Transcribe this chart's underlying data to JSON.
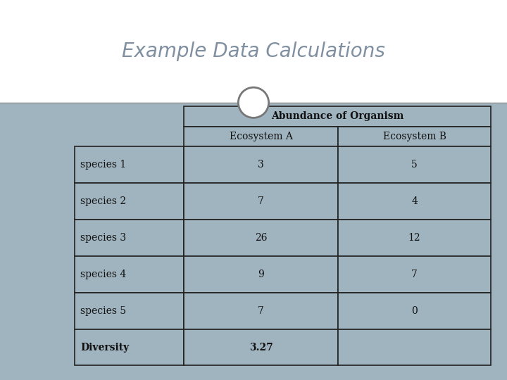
{
  "title": "Example Data Calculations",
  "title_fontsize": 20,
  "title_color": "#8090A0",
  "title_font": "Georgia",
  "bg_top": "#FFFFFF",
  "bg_bottom": "#A0B4C0",
  "divider_color": "#999999",
  "circle_facecolor": "#FFFFFF",
  "circle_edge_color": "#777777",
  "table_header1": "Abundance of Organism",
  "table_header2a": "Ecosystem A",
  "table_header2b": "Ecosystem B",
  "row_labels": [
    "species 1",
    "species 2",
    "species 3",
    "species 4",
    "species 5",
    "Diversity"
  ],
  "col_a": [
    "3",
    "7",
    "26",
    "9",
    "7",
    "3.27"
  ],
  "col_b": [
    "5",
    "4",
    "12",
    "7",
    "0",
    ""
  ],
  "cell_bg": "#A0B4C0",
  "table_border": "#222222",
  "font_color": "#111111"
}
